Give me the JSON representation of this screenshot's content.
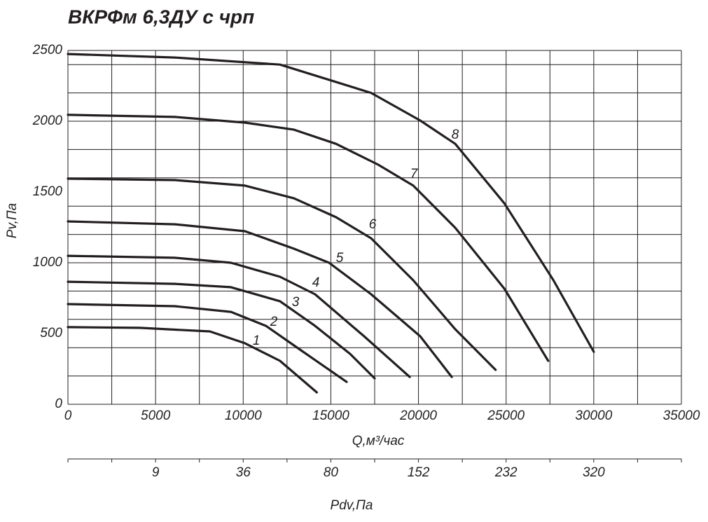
{
  "chart_data": {
    "type": "line",
    "title": "ВКРФм 6,3ДУ с чрп",
    "x_label": "Q,м³/час",
    "y_label": "Pv,Па",
    "xlim": [
      0,
      35000
    ],
    "ylim": [
      0,
      2500
    ],
    "xticks": [
      0,
      5000,
      10000,
      15000,
      20000,
      25000,
      30000,
      35000
    ],
    "yticks": [
      0,
      500,
      1000,
      1500,
      2000,
      2500
    ],
    "x_gridlines": [
      0,
      2500,
      5000,
      7500,
      10000,
      12500,
      15000,
      17500,
      20000,
      22500,
      25000,
      27500,
      30000,
      32500,
      35000
    ],
    "y_gridlines": [
      0,
      200,
      400,
      600,
      800,
      1000,
      1200,
      1400,
      1600,
      1800,
      2000,
      2200,
      2400,
      2500
    ],
    "grid": true,
    "series": [
      {
        "name": "1",
        "color": "#231f20",
        "x": [
          0,
          4100,
          8100,
          10100,
          12100,
          14200
        ],
        "values": [
          545,
          540,
          515,
          431,
          307,
          84
        ]
      },
      {
        "name": "2",
        "color": "#231f20",
        "x": [
          0,
          6100,
          9300,
          11300,
          13300,
          15900
        ],
        "values": [
          708,
          693,
          653,
          554,
          381,
          158
        ]
      },
      {
        "name": "3",
        "color": "#231f20",
        "x": [
          0,
          6100,
          9300,
          12100,
          14100,
          16100,
          17500
        ],
        "values": [
          866,
          851,
          827,
          728,
          554,
          356,
          183
        ]
      },
      {
        "name": "4",
        "color": "#231f20",
        "x": [
          0,
          6100,
          9300,
          12100,
          14100,
          16900,
          19500
        ],
        "values": [
          1049,
          1035,
          1000,
          901,
          777,
          480,
          193
        ]
      },
      {
        "name": "5",
        "color": "#231f20",
        "x": [
          0,
          6100,
          10100,
          12900,
          14900,
          17300,
          20100,
          21900
        ],
        "values": [
          1292,
          1272,
          1223,
          1099,
          1000,
          777,
          480,
          193
        ]
      },
      {
        "name": "6",
        "color": "#231f20",
        "x": [
          0,
          6100,
          10100,
          12900,
          15300,
          17300,
          19700,
          22100,
          24400
        ],
        "values": [
          1594,
          1584,
          1545,
          1455,
          1322,
          1173,
          876,
          530,
          243
        ]
      },
      {
        "name": "7",
        "color": "#231f20",
        "x": [
          0,
          6100,
          10100,
          12900,
          15300,
          17700,
          19700,
          22100,
          24900,
          27400
        ],
        "values": [
          2045,
          2030,
          1990,
          1940,
          1840,
          1693,
          1545,
          1247,
          817,
          307
        ]
      },
      {
        "name": "8",
        "color": "#231f20",
        "x": [
          0,
          6100,
          12100,
          17300,
          20100,
          22100,
          24900,
          27700,
          30000
        ],
        "values": [
          2475,
          2450,
          2400,
          2200,
          2005,
          1840,
          1420,
          876,
          371
        ]
      }
    ],
    "pdv_axis": {
      "label": "Pdv,Па",
      "q_positions": [
        5000,
        10000,
        15000,
        20000,
        25000,
        30000
      ],
      "ticks": [
        9,
        36,
        80,
        152,
        232,
        320
      ]
    }
  }
}
